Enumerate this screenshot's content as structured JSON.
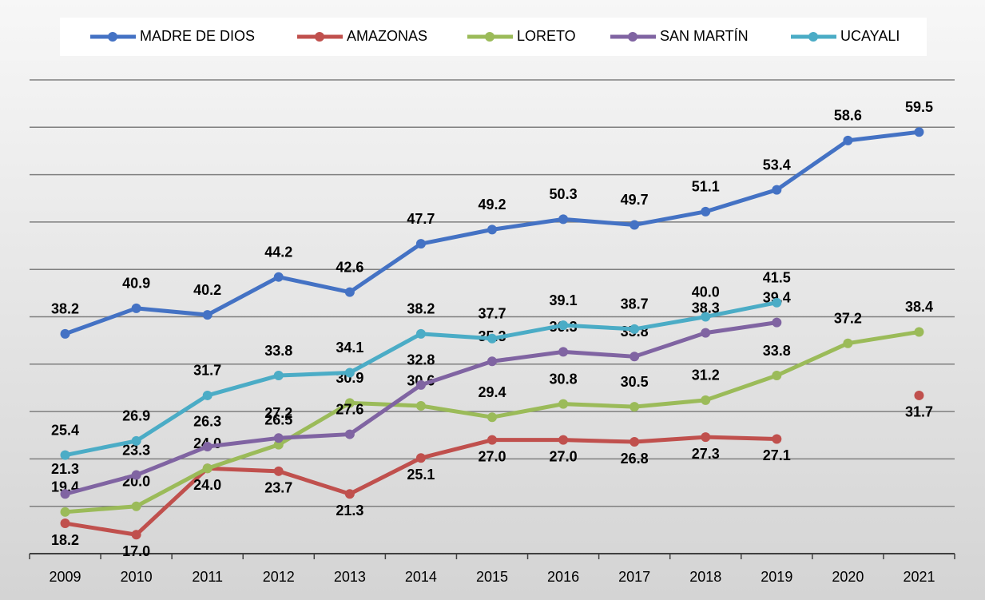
{
  "chart_data": {
    "type": "line",
    "categories": [
      "2009",
      "2010",
      "2011",
      "2012",
      "2013",
      "2014",
      "2015",
      "2016",
      "2017",
      "2018",
      "2019",
      "2020",
      "2021"
    ],
    "series": [
      {
        "name": "MADRE DE DIOS",
        "color": "#4472c4",
        "values": [
          38.2,
          40.9,
          40.2,
          44.2,
          42.6,
          47.7,
          49.2,
          50.3,
          49.7,
          51.1,
          53.4,
          58.6,
          59.5
        ]
      },
      {
        "name": "AMAZONAS",
        "color": "#c0504d",
        "values": [
          18.2,
          17.0,
          24.0,
          23.7,
          21.3,
          25.1,
          27.0,
          27.0,
          26.8,
          27.3,
          27.1,
          null,
          31.7
        ]
      },
      {
        "name": "LORETO",
        "color": "#9bbb59",
        "values": [
          19.4,
          20.0,
          24.0,
          26.5,
          30.9,
          30.6,
          29.4,
          30.8,
          30.5,
          31.2,
          33.8,
          37.2,
          38.4
        ]
      },
      {
        "name": "SAN MARTÍN",
        "color": "#8064a2",
        "values": [
          21.3,
          23.3,
          26.3,
          27.2,
          27.6,
          32.8,
          35.3,
          36.3,
          35.8,
          38.3,
          39.4,
          null,
          null
        ]
      },
      {
        "name": "UCAYALI",
        "color": "#4bacc6",
        "values": [
          25.4,
          26.9,
          31.7,
          33.8,
          34.1,
          38.2,
          37.7,
          39.1,
          38.7,
          40.0,
          41.5,
          null,
          null
        ]
      }
    ],
    "ylim": [
      15,
      65
    ],
    "yticks": [
      15,
      20,
      25,
      30,
      35,
      40,
      45,
      50,
      55,
      60,
      65
    ],
    "grid": true,
    "legend": "top"
  }
}
